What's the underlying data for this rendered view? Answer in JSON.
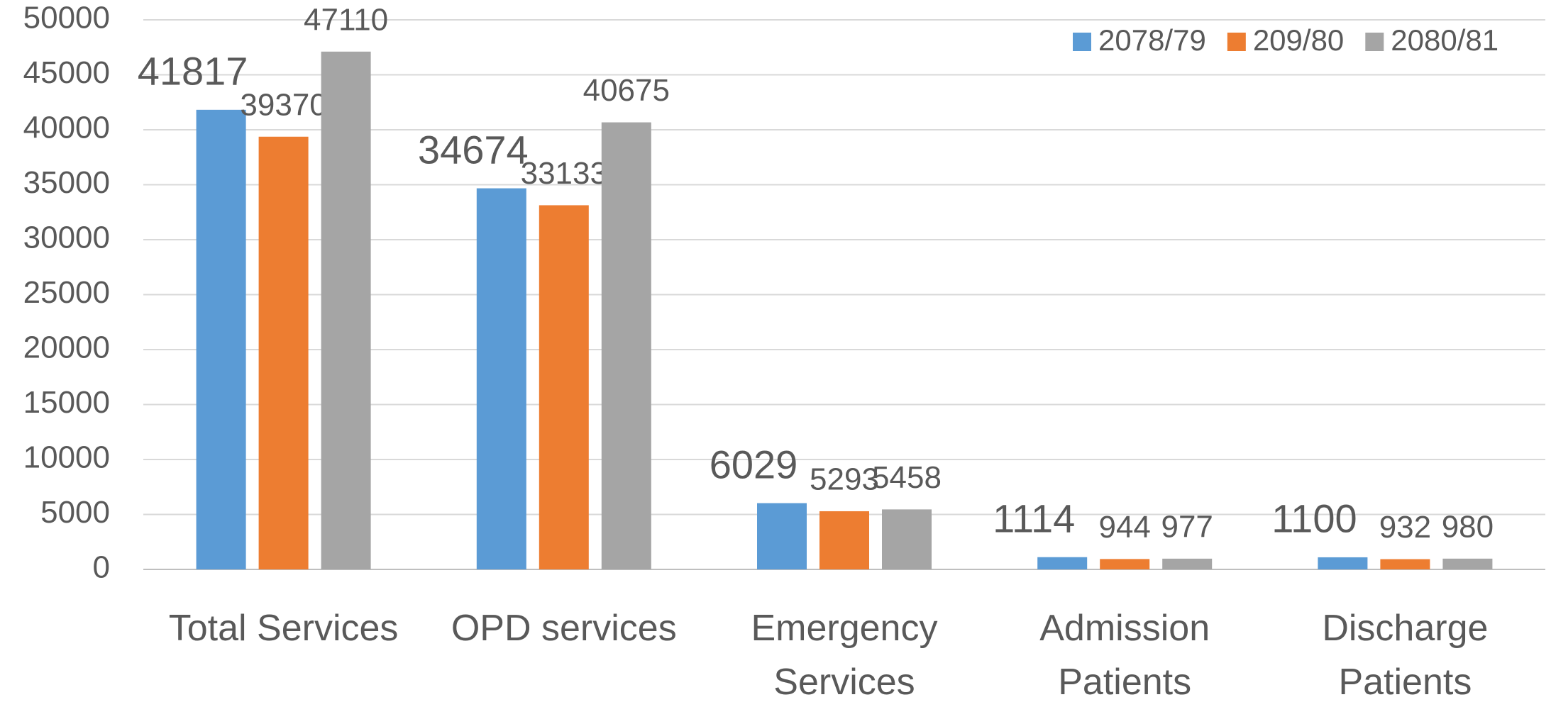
{
  "chart_data": {
    "type": "bar",
    "categories": [
      "Total Services",
      "OPD services",
      "Emergency Services",
      "Admission Patients",
      "Discharge Patients"
    ],
    "series": [
      {
        "name": "2078/79",
        "color": "#5b9bd5",
        "values": [
          41817,
          34674,
          6029,
          1114,
          1100
        ]
      },
      {
        "name": "209/80",
        "color": "#ed7d31",
        "values": [
          39370,
          33133,
          5293,
          944,
          932
        ]
      },
      {
        "name": "2080/81",
        "color": "#a5a5a5",
        "values": [
          47110,
          40675,
          5458,
          977,
          980
        ]
      }
    ],
    "ylim": [
      0,
      50000
    ],
    "yticks": [
      0,
      5000,
      10000,
      15000,
      20000,
      25000,
      30000,
      35000,
      40000,
      45000,
      50000
    ],
    "grid": true,
    "legend": "top-right"
  }
}
